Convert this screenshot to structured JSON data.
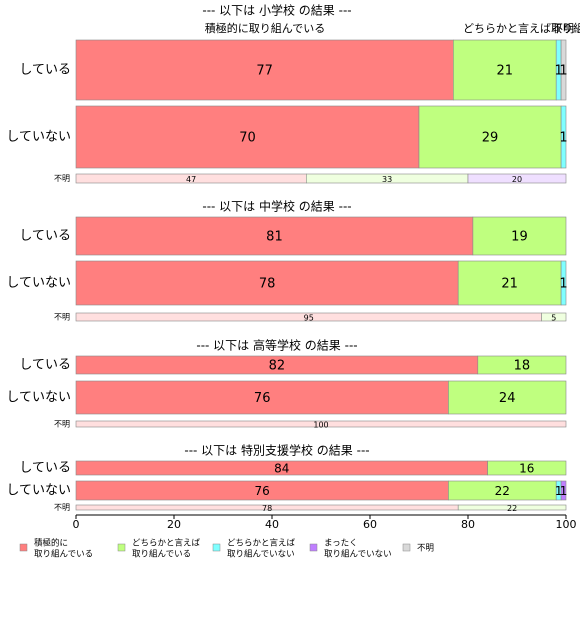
{
  "chart_data": {
    "type": "stacked-bar-h",
    "series": [
      {
        "name": "積極的に\n取り組んでいる",
        "color": "#ff7f7f",
        "light_color": "#ffdfdf"
      },
      {
        "name": "どちらかと言えば\n取り組んでいる",
        "color": "#bfff7f",
        "light_color": "#efffdf"
      },
      {
        "name": "どちらかと言えば\n取り組んでいない",
        "color": "#7fffff",
        "light_color": "#dfffff"
      },
      {
        "name": "まったく\n取り組んでいない",
        "color": "#bf7fff",
        "light_color": "#efdfff"
      },
      {
        "name": "不明",
        "color": "#d9d9d9",
        "light_color": "#f3f3f3"
      }
    ],
    "header_labels": [
      "積極的に取り組んでいる",
      "どちらかと言えば取り組んでいる",
      "不明"
    ],
    "groups": [
      {
        "title": "--- 以下は 小学校 の結果 ---",
        "rows": [
          {
            "label": "している",
            "values": [
              77,
              21,
              1,
              0,
              1
            ]
          },
          {
            "label": "していない",
            "values": [
              70,
              29,
              1,
              0,
              0
            ]
          },
          {
            "label": "不明",
            "values": [
              47,
              33,
              0,
              20,
              0
            ]
          }
        ]
      },
      {
        "title": "--- 以下は 中学校 の結果 ---",
        "rows": [
          {
            "label": "している",
            "values": [
              81,
              19,
              0,
              0,
              0
            ]
          },
          {
            "label": "していない",
            "values": [
              78,
              21,
              1,
              0,
              0
            ]
          },
          {
            "label": "不明",
            "values": [
              95,
              5,
              0,
              0,
              0
            ]
          }
        ]
      },
      {
        "title": "--- 以下は 高等学校 の結果 ---",
        "rows": [
          {
            "label": "している",
            "values": [
              82,
              18,
              0,
              0,
              0
            ]
          },
          {
            "label": "していない",
            "values": [
              76,
              24,
              0,
              0,
              0
            ]
          },
          {
            "label": "不明",
            "values": [
              100,
              0,
              0,
              0,
              0
            ]
          }
        ]
      },
      {
        "title": "--- 以下は 特別支援学校 の結果 ---",
        "rows": [
          {
            "label": "している",
            "values": [
              84,
              16,
              0,
              0,
              0
            ]
          },
          {
            "label": "していない",
            "values": [
              76,
              22,
              1,
              1,
              0
            ]
          },
          {
            "label": "不明",
            "values": [
              78,
              22,
              0,
              0,
              0
            ]
          }
        ]
      }
    ],
    "xlim": [
      0,
      100
    ],
    "xticks": [
      0,
      20,
      40,
      60,
      80,
      100
    ]
  }
}
